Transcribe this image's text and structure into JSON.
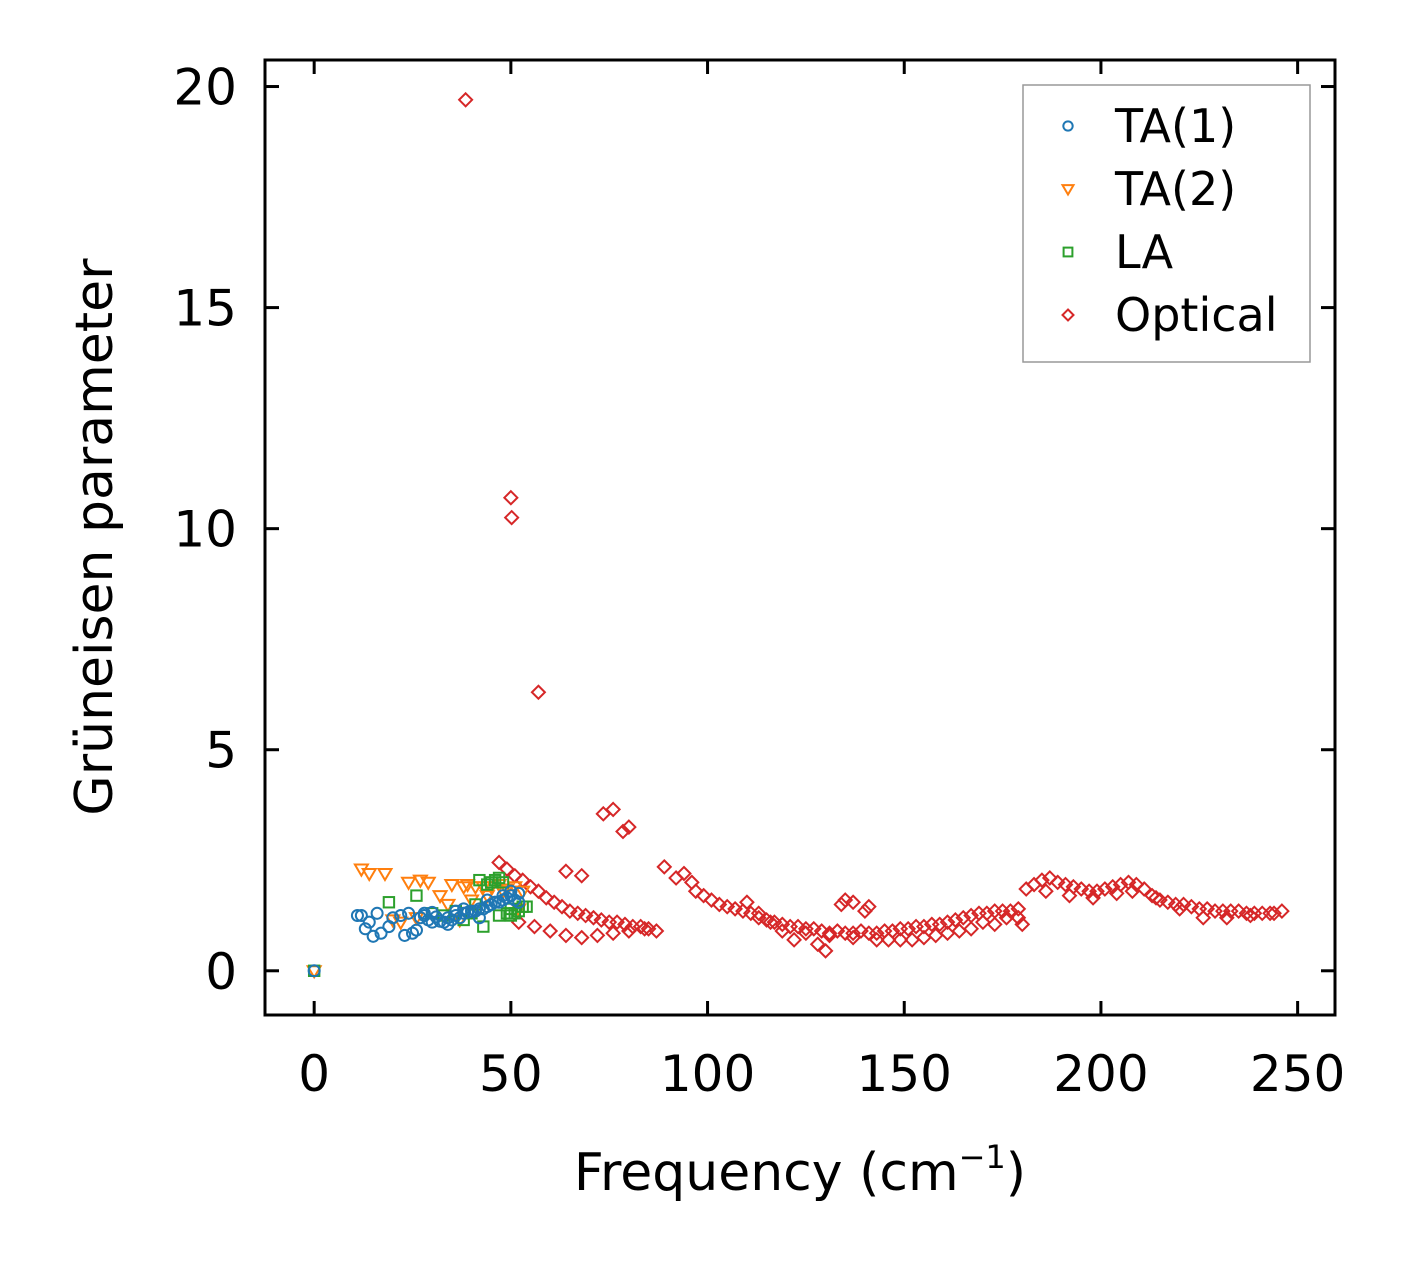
{
  "chart_data": {
    "type": "scatter",
    "title": "",
    "xlabel": "Frequency (cm",
    "xlabel_sup": "−1",
    "xlabel_end": ")",
    "ylabel": "Grüneisen parameter",
    "xlim": [
      -12.5,
      259.5
    ],
    "ylim": [
      -1.0,
      20.6
    ],
    "xticks": [
      0,
      50,
      100,
      150,
      200,
      250
    ],
    "yticks": [
      0,
      5,
      10,
      15,
      20
    ],
    "xtick_labels": [
      "0",
      "50",
      "100",
      "150",
      "200",
      "250"
    ],
    "ytick_labels": [
      "0",
      "5",
      "10",
      "15",
      "20"
    ],
    "grid": false,
    "legend_position": "top-right",
    "series": [
      {
        "name": "TA(1)",
        "marker": "circle",
        "color": "#1f77b4",
        "x": [
          0,
          11,
          12,
          13,
          14,
          15,
          16,
          17,
          19,
          20,
          22,
          23,
          24,
          25,
          26,
          27,
          28,
          29,
          30,
          31,
          32,
          33,
          34,
          35,
          36,
          37,
          38,
          39,
          40,
          41,
          42,
          43,
          44,
          45,
          46,
          47,
          48,
          49,
          50,
          51,
          52,
          30,
          34,
          38,
          42,
          46,
          50,
          28,
          36,
          44,
          48,
          52
        ],
        "y": [
          0.0,
          1.25,
          1.25,
          0.95,
          1.1,
          0.78,
          1.3,
          0.85,
          1.0,
          1.2,
          1.25,
          0.8,
          1.3,
          0.85,
          0.92,
          1.2,
          1.3,
          1.15,
          1.1,
          1.22,
          1.12,
          1.1,
          1.2,
          1.15,
          1.25,
          1.2,
          1.3,
          1.32,
          1.35,
          1.35,
          1.4,
          1.4,
          1.45,
          1.5,
          1.55,
          1.55,
          1.6,
          1.65,
          1.7,
          1.6,
          1.55,
          1.32,
          1.05,
          1.4,
          1.2,
          1.55,
          1.8,
          1.25,
          1.35,
          1.6,
          1.7,
          1.75
        ]
      },
      {
        "name": "TA(2)",
        "marker": "triangle-down",
        "color": "#ff7f0e",
        "x": [
          0,
          12,
          14,
          18,
          22,
          24,
          27,
          29,
          32,
          35,
          37,
          38,
          39,
          41,
          43,
          45,
          47,
          49,
          51,
          53,
          20,
          26,
          34,
          40,
          44,
          48,
          52
        ],
        "y": [
          0.0,
          2.3,
          2.2,
          2.2,
          1.1,
          2.0,
          2.05,
          2.0,
          1.7,
          1.95,
          1.15,
          1.9,
          1.95,
          1.9,
          1.9,
          1.9,
          1.95,
          1.85,
          1.9,
          1.8,
          1.15,
          1.2,
          1.5,
          1.6,
          1.7,
          1.8,
          1.4
        ]
      },
      {
        "name": "LA",
        "marker": "square",
        "color": "#2ca02c",
        "x": [
          0,
          19,
          26,
          30,
          33,
          36,
          40,
          42,
          43,
          44,
          45,
          46,
          47,
          48,
          49,
          50,
          51,
          52,
          53,
          54,
          38,
          41,
          47,
          50
        ],
        "y": [
          0.0,
          1.55,
          1.7,
          1.3,
          1.25,
          1.35,
          1.3,
          2.05,
          1.0,
          1.95,
          2.0,
          2.05,
          2.1,
          2.0,
          1.3,
          1.25,
          1.3,
          1.35,
          1.45,
          1.45,
          1.15,
          1.5,
          1.25,
          1.4
        ]
      },
      {
        "name": "Optical",
        "marker": "diamond",
        "color": "#d62728",
        "x": [
          38.5,
          50,
          50.2,
          57,
          73.5,
          76,
          78.5,
          80,
          64,
          68,
          89,
          92,
          94,
          96,
          47,
          49,
          51,
          53,
          55,
          57,
          59,
          61,
          63,
          65,
          67,
          69,
          71,
          73,
          75,
          77,
          79,
          81,
          83,
          85,
          87,
          97,
          99,
          101,
          103,
          105,
          107,
          109,
          111,
          113,
          115,
          117,
          119,
          121,
          123,
          125,
          127,
          129,
          131,
          133,
          135,
          137,
          139,
          141,
          143,
          145,
          147,
          149,
          151,
          153,
          155,
          157,
          159,
          161,
          163,
          165,
          167,
          169,
          171,
          173,
          175,
          177,
          179,
          181,
          183,
          185,
          187,
          189,
          191,
          193,
          195,
          197,
          199,
          201,
          203,
          205,
          207,
          209,
          211,
          213,
          215,
          217,
          219,
          221,
          223,
          225,
          227,
          229,
          231,
          233,
          235,
          237,
          239,
          241,
          243,
          246,
          52,
          56,
          60,
          64,
          68,
          72,
          76,
          80,
          84,
          110,
          116,
          122,
          128,
          130,
          134,
          140,
          146,
          152,
          158,
          164,
          170,
          176,
          180,
          186,
          192,
          198,
          204,
          208,
          214,
          220,
          226,
          232,
          238,
          244,
          113,
          119,
          125,
          131,
          137,
          143,
          149,
          155,
          161,
          167,
          173,
          179,
          135,
          137,
          141
        ],
        "y": [
          19.7,
          10.7,
          10.25,
          6.3,
          3.55,
          3.65,
          3.15,
          3.25,
          2.25,
          2.15,
          2.35,
          2.1,
          2.2,
          2.0,
          2.45,
          2.3,
          2.15,
          2.05,
          1.9,
          1.8,
          1.65,
          1.55,
          1.45,
          1.35,
          1.3,
          1.25,
          1.2,
          1.15,
          1.1,
          1.1,
          1.05,
          1.0,
          1.0,
          0.95,
          0.9,
          1.8,
          1.7,
          1.6,
          1.5,
          1.45,
          1.4,
          1.35,
          1.3,
          1.2,
          1.15,
          1.1,
          1.05,
          1.0,
          1.0,
          0.95,
          0.95,
          0.9,
          0.85,
          0.9,
          0.85,
          0.85,
          0.9,
          0.85,
          0.85,
          0.9,
          0.9,
          0.95,
          0.95,
          1.0,
          1.0,
          1.05,
          1.05,
          1.1,
          1.15,
          1.2,
          1.25,
          1.3,
          1.3,
          1.35,
          1.35,
          1.35,
          1.4,
          1.85,
          1.95,
          2.05,
          2.1,
          2.0,
          1.95,
          1.9,
          1.85,
          1.8,
          1.8,
          1.85,
          1.9,
          1.95,
          2.0,
          1.95,
          1.85,
          1.7,
          1.6,
          1.55,
          1.5,
          1.5,
          1.45,
          1.4,
          1.4,
          1.35,
          1.35,
          1.35,
          1.35,
          1.3,
          1.3,
          1.3,
          1.3,
          1.35,
          1.1,
          1.0,
          0.9,
          0.8,
          0.75,
          0.8,
          0.85,
          0.9,
          0.95,
          1.55,
          1.1,
          0.7,
          0.6,
          0.45,
          1.5,
          1.35,
          0.7,
          0.7,
          0.8,
          0.9,
          1.1,
          1.2,
          1.05,
          1.8,
          1.7,
          1.65,
          1.75,
          1.8,
          1.65,
          1.4,
          1.2,
          1.2,
          1.25,
          1.3,
          1.3,
          0.9,
          0.85,
          0.8,
          0.75,
          0.7,
          0.7,
          0.75,
          0.85,
          0.95,
          1.05,
          1.2,
          1.6,
          1.55,
          1.45
        ]
      }
    ]
  }
}
